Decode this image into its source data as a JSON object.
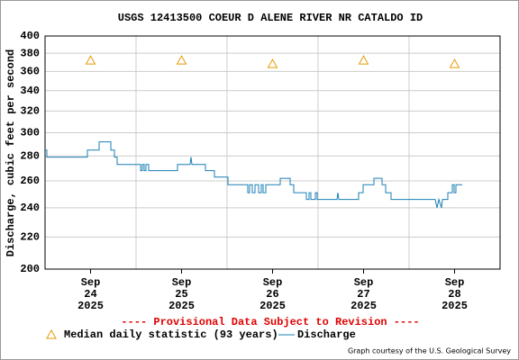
{
  "chart_data": {
    "type": "line",
    "title": "USGS 12413500 COEUR D ALENE RIVER NR CATALDO ID",
    "y_label": "Discharge, cubic feet per second",
    "annotation": "---- Provisional Data Subject to Revision ----",
    "credit": "Graph courtesy of the U.S. Geological Survey",
    "log_scale_y": true,
    "grid": true,
    "xlim": [
      0,
      5
    ],
    "xticks": [
      {
        "value": 0.5,
        "label": "Sep\n24\n2025"
      },
      {
        "value": 1.5,
        "label": "Sep\n25\n2025"
      },
      {
        "value": 2.5,
        "label": "Sep\n26\n2025"
      },
      {
        "value": 3.5,
        "label": "Sep\n27\n2025"
      },
      {
        "value": 4.5,
        "label": "Sep\n28\n2025"
      }
    ],
    "xminorticks": [
      1,
      2,
      3,
      4
    ],
    "ylim": [
      200,
      400
    ],
    "yticks": [
      200,
      220,
      240,
      260,
      280,
      300,
      320,
      340,
      360,
      380,
      400
    ],
    "series": [
      {
        "name": "Median daily statistic (93 years)",
        "color": "#e69a00",
        "marker": "triangle",
        "x": [
          0.5,
          1.5,
          2.5,
          3.5,
          4.5
        ],
        "values": [
          372,
          372,
          368,
          372,
          368
        ]
      },
      {
        "name": "Discharge",
        "color": "#1a7fb5",
        "marker": "line",
        "x": [
          0,
          0.02,
          0.02,
          0.465,
          0.465,
          0.594,
          0.594,
          0.723,
          0.723,
          0.762,
          0.762,
          0.792,
          0.792,
          1.05,
          1.05,
          1.069,
          1.069,
          1.089,
          1.089,
          1.109,
          1.109,
          1.139,
          1.139,
          1.455,
          1.455,
          1.594,
          1.604,
          1.614,
          1.762,
          1.762,
          1.861,
          1.861,
          2.01,
          2.01,
          2.228,
          2.228,
          2.248,
          2.248,
          2.277,
          2.277,
          2.307,
          2.307,
          2.347,
          2.347,
          2.376,
          2.376,
          2.396,
          2.396,
          2.426,
          2.426,
          2.584,
          2.584,
          2.693,
          2.693,
          2.733,
          2.733,
          2.871,
          2.871,
          2.901,
          2.901,
          2.921,
          2.921,
          2.97,
          2.97,
          2.99,
          2.99,
          3.208,
          3.218,
          3.228,
          3.446,
          3.446,
          3.495,
          3.495,
          3.614,
          3.614,
          3.703,
          3.703,
          3.743,
          3.743,
          3.802,
          3.802,
          4.287,
          4.307,
          4.327,
          4.356,
          4.366,
          4.426,
          4.426,
          4.475,
          4.475,
          4.495,
          4.495,
          4.515,
          4.515,
          4.584
        ],
        "values": [
          285,
          285,
          279,
          279,
          285,
          285,
          292,
          292,
          285,
          285,
          279,
          279,
          273,
          273,
          268,
          268,
          273,
          273,
          268,
          268,
          273,
          273,
          268,
          268,
          273,
          273,
          279,
          273,
          273,
          268,
          268,
          263,
          263,
          257,
          257,
          251,
          251,
          257,
          257,
          251,
          251,
          257,
          257,
          251,
          251,
          257,
          257,
          251,
          251,
          257,
          257,
          262,
          262,
          257,
          257,
          251,
          251,
          246,
          246,
          251,
          251,
          246,
          246,
          251,
          251,
          246,
          246,
          251,
          246,
          246,
          251,
          251,
          257,
          257,
          262,
          262,
          257,
          257,
          251,
          251,
          246,
          246,
          240,
          246,
          240,
          246,
          246,
          251,
          251,
          257,
          257,
          251,
          251,
          257,
          257
        ]
      }
    ]
  }
}
